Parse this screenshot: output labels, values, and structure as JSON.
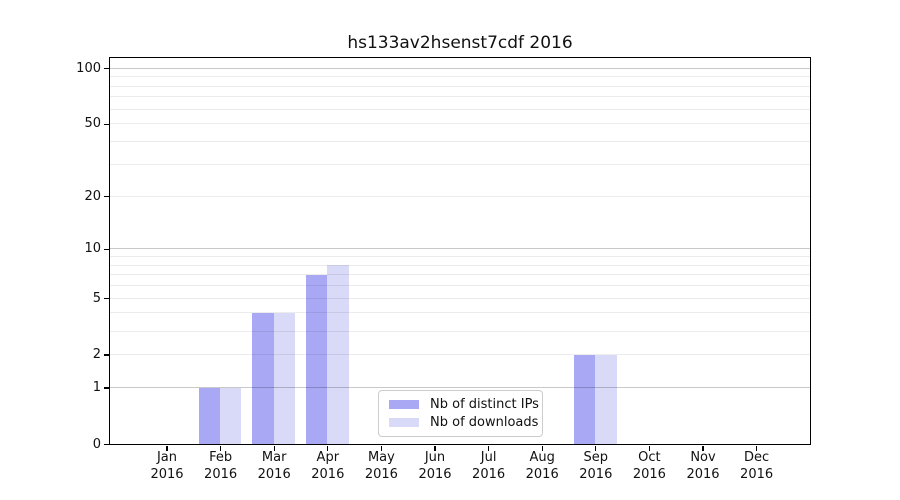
{
  "chart_data": {
    "type": "bar",
    "title": "hs133av2hsenst7cdf 2016",
    "categories": [
      "Jan",
      "Feb",
      "Mar",
      "Apr",
      "May",
      "Jun",
      "Jul",
      "Aug",
      "Sep",
      "Oct",
      "Nov",
      "Dec"
    ],
    "category_sub_label": "2016",
    "series": [
      {
        "name": "Nb of distinct IPs",
        "color": "#a8a8f5",
        "values": [
          0,
          1,
          4,
          7,
          0,
          0,
          0,
          0,
          2,
          0,
          0,
          0
        ]
      },
      {
        "name": "Nb of downloads",
        "color": "#d9d9f8",
        "values": [
          0,
          1,
          4,
          8,
          0,
          0,
          0,
          0,
          2,
          0,
          0,
          0
        ]
      }
    ],
    "y_axis": {
      "scale": "log10(value+1)",
      "tick_labels": [
        "0",
        "1",
        "2",
        "5",
        "10",
        "20",
        "50",
        "100"
      ],
      "tick_values": [
        0,
        1,
        2,
        5,
        10,
        20,
        50,
        100
      ],
      "minor_gridlines": [
        2,
        3,
        4,
        5,
        6,
        7,
        8,
        9,
        20,
        30,
        40,
        50,
        60,
        70,
        80,
        90
      ],
      "major_gridlines": [
        1,
        10,
        100
      ],
      "ylim": [
        0,
        114
      ]
    },
    "legend": {
      "position": "lower center"
    },
    "grid": "horizontal",
    "background": "#ffffff"
  }
}
